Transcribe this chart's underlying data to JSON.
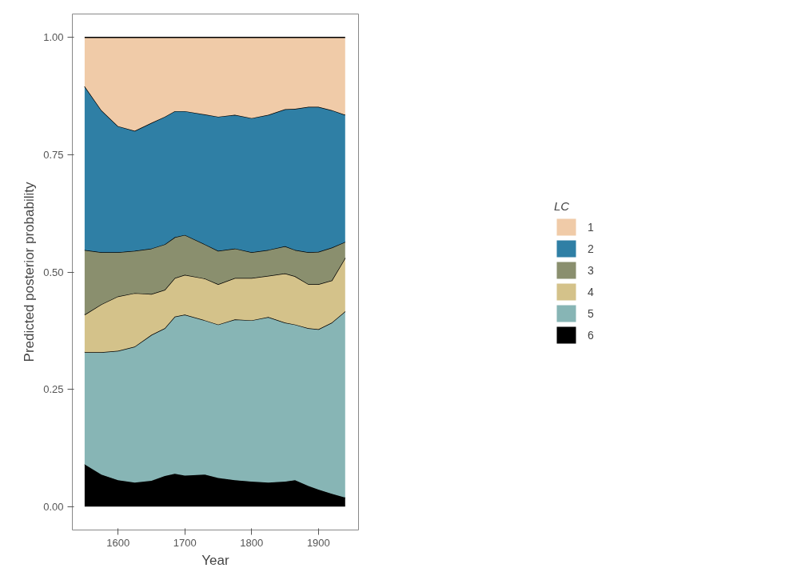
{
  "chart_data": {
    "type": "area",
    "stacked": true,
    "xlabel": "Year",
    "ylabel": "Predicted posterior probability",
    "legend_title": "LC",
    "x": [
      1550,
      1575,
      1600,
      1625,
      1650,
      1670,
      1685,
      1700,
      1730,
      1750,
      1775,
      1800,
      1825,
      1850,
      1865,
      1885,
      1900,
      1920,
      1940
    ],
    "series": [
      {
        "name": "6",
        "color": "#000000",
        "values": [
          0.09,
          0.068,
          0.056,
          0.051,
          0.055,
          0.065,
          0.07,
          0.066,
          0.068,
          0.061,
          0.056,
          0.053,
          0.051,
          0.053,
          0.056,
          0.044,
          0.036,
          0.027,
          0.019
        ]
      },
      {
        "name": "5",
        "color": "#87b5b5",
        "values": [
          0.239,
          0.261,
          0.276,
          0.29,
          0.311,
          0.315,
          0.335,
          0.343,
          0.329,
          0.327,
          0.343,
          0.344,
          0.353,
          0.339,
          0.332,
          0.336,
          0.342,
          0.365,
          0.397
        ]
      },
      {
        "name": "4",
        "color": "#d4c28a",
        "values": [
          0.08,
          0.102,
          0.116,
          0.114,
          0.087,
          0.082,
          0.082,
          0.085,
          0.089,
          0.086,
          0.088,
          0.09,
          0.088,
          0.105,
          0.103,
          0.094,
          0.096,
          0.09,
          0.114
        ]
      },
      {
        "name": "3",
        "color": "#8a8f6e",
        "values": [
          0.138,
          0.111,
          0.094,
          0.09,
          0.097,
          0.097,
          0.087,
          0.085,
          0.073,
          0.071,
          0.063,
          0.055,
          0.055,
          0.058,
          0.056,
          0.068,
          0.069,
          0.07,
          0.034
        ]
      },
      {
        "name": "2",
        "color": "#2f7fa5",
        "values": [
          0.349,
          0.303,
          0.269,
          0.256,
          0.268,
          0.272,
          0.269,
          0.264,
          0.277,
          0.286,
          0.285,
          0.286,
          0.288,
          0.292,
          0.301,
          0.31,
          0.309,
          0.293,
          0.271
        ]
      },
      {
        "name": "1",
        "color": "#f0cba8",
        "values": [
          0.104,
          0.155,
          0.189,
          0.199,
          0.182,
          0.169,
          0.157,
          0.157,
          0.164,
          0.169,
          0.165,
          0.172,
          0.165,
          0.153,
          0.152,
          0.148,
          0.148,
          0.155,
          0.165
        ]
      }
    ],
    "xlim": [
      1531.6,
      1960
    ],
    "xticks": [
      1600,
      1700,
      1800,
      1900
    ],
    "ylim": [
      -0.05,
      1.05
    ],
    "yticks": [
      {
        "value": 0,
        "label": "0.00"
      },
      {
        "value": 0.25,
        "label": "0.25"
      },
      {
        "value": 0.5,
        "label": "0.50"
      },
      {
        "value": 0.75,
        "label": "0.75"
      },
      {
        "value": 1,
        "label": "1.00"
      }
    ],
    "grid": false,
    "legend": "right"
  }
}
